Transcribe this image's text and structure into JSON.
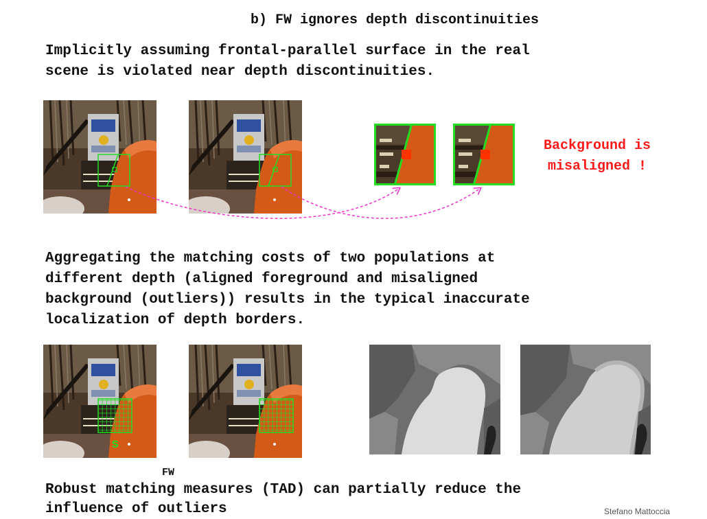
{
  "slide": {
    "title": "b) FW ignores depth discontinuities",
    "para1": "Implicitly assuming frontal-parallel surface in the real\nscene is violated near depth discontinuities.",
    "note": "Background is\nmisaligned !",
    "para2": "Aggregating the matching costs of two populations at\ndifferent depth (aligned foreground and misaligned\nbackground (outliers)) results in the typical inaccurate\nlocalization of depth borders.",
    "support_label": "S",
    "fw_label": "FW",
    "para3": "Robust matching measures (TAD) can partially reduce the\ninfluence of outliers",
    "author": "Stefano Mattoccia"
  },
  "colors": {
    "window_green": "#22dd22",
    "pixel_red": "#ff3300",
    "arrow_magenta": "#ee33cc",
    "note_red": "#ff1a1a"
  }
}
